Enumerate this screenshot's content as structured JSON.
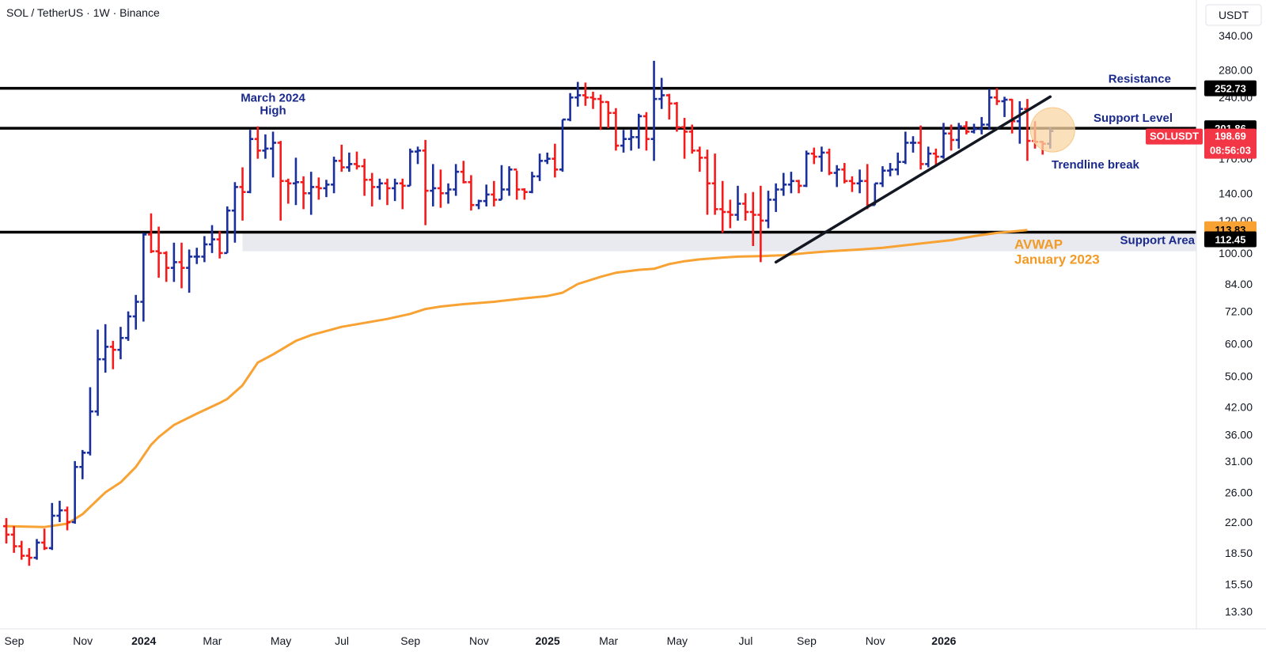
{
  "header": {
    "title": "SOL / TetherUS · 1W · Binance",
    "currency": "USDT"
  },
  "colors": {
    "up": "#1a2f9c",
    "down": "#f51b1b",
    "level_line": "#000000",
    "avwap": "#f7a232",
    "annotation": "#1a2a8c",
    "support_fill": "#e8eaef",
    "badge_dark": "#000000",
    "badge_red": "#f23645",
    "badge_orange": "#f7a232",
    "circle_fill": "#f9d6a6"
  },
  "chart_data": {
    "type": "ohlc",
    "scale": "log",
    "symbol": "SOLUSDT",
    "ylim": [
      13.3,
      340
    ],
    "y_ticks": [
      340,
      280,
      240,
      200,
      170,
      140,
      120,
      100,
      84,
      72,
      60,
      50,
      42,
      36,
      31,
      26,
      22,
      18.5,
      15.5,
      13.3
    ],
    "y_tick_labels": [
      "340.00",
      "280.00",
      "240.00",
      "200.00",
      "170.00",
      "140.00",
      "120.00",
      "100.00",
      "84.00",
      "72.00",
      "60.00",
      "50.00",
      "42.00",
      "36.00",
      "31.00",
      "26.00",
      "22.00",
      "18.50",
      "15.50",
      "13.30"
    ],
    "x_labels": [
      {
        "label": "Sep",
        "week": 0,
        "bold": false
      },
      {
        "label": "Nov",
        "week": 9,
        "bold": false
      },
      {
        "label": "2024",
        "week": 17,
        "bold": true
      },
      {
        "label": "Mar",
        "week": 26,
        "bold": false
      },
      {
        "label": "May",
        "week": 35,
        "bold": false
      },
      {
        "label": "Jul",
        "week": 43,
        "bold": false
      },
      {
        "label": "Sep",
        "week": 52,
        "bold": false
      },
      {
        "label": "Nov",
        "week": 61,
        "bold": false
      },
      {
        "label": "2025",
        "week": 70,
        "bold": true
      },
      {
        "label": "Mar",
        "week": 78,
        "bold": false
      },
      {
        "label": "May",
        "week": 87,
        "bold": false
      },
      {
        "label": "Jul",
        "week": 96,
        "bold": false
      },
      {
        "label": "Sep",
        "week": 104,
        "bold": false
      },
      {
        "label": "Nov",
        "week": 113,
        "bold": false
      },
      {
        "label": "2026",
        "week": 122,
        "bold": true
      }
    ],
    "ohlc": [
      [
        21.5,
        22.5,
        19.5,
        20.5
      ],
      [
        20.5,
        21.5,
        18.5,
        19.2
      ],
      [
        19.2,
        19.8,
        17.8,
        18.2
      ],
      [
        18.2,
        19.0,
        17.2,
        18.0
      ],
      [
        18.0,
        20.0,
        17.8,
        19.6
      ],
      [
        19.6,
        21.2,
        18.8,
        19.0
      ],
      [
        19.0,
        24.5,
        18.8,
        22.8
      ],
      [
        22.8,
        24.8,
        22.0,
        23.5
      ],
      [
        23.5,
        24.0,
        21.0,
        22.0
      ],
      [
        22.0,
        31.0,
        21.8,
        30.0
      ],
      [
        30.0,
        33.0,
        28.0,
        32.5
      ],
      [
        32.5,
        47.0,
        32.0,
        41.0
      ],
      [
        41.0,
        65.0,
        40.0,
        55.0
      ],
      [
        55.0,
        67.0,
        51.0,
        59.0
      ],
      [
        59.0,
        61.0,
        52.0,
        58.0
      ],
      [
        58.0,
        66.0,
        55.0,
        62.0
      ],
      [
        62.0,
        72.0,
        61.0,
        70.0
      ],
      [
        70.0,
        79.0,
        65.0,
        76.0
      ],
      [
        76.0,
        112.0,
        68.0,
        111.0
      ],
      [
        111.0,
        125.0,
        100.0,
        101.0
      ],
      [
        101.0,
        116.0,
        87.0,
        100.0
      ],
      [
        100.0,
        101.0,
        85.0,
        92.0
      ],
      [
        92.0,
        106.0,
        85.0,
        95.0
      ],
      [
        95.0,
        106.0,
        82.0,
        92.0
      ],
      [
        92.0,
        102.0,
        80.0,
        98.0
      ],
      [
        98.0,
        103.0,
        94.0,
        98.0
      ],
      [
        98.0,
        110.0,
        95.0,
        105.0
      ],
      [
        105.0,
        117.0,
        100.0,
        108.0
      ],
      [
        108.0,
        113.0,
        97.0,
        100.0
      ],
      [
        100.0,
        130.0,
        100.0,
        127.0
      ],
      [
        127.0,
        149.0,
        106.0,
        145.0
      ],
      [
        145.0,
        162.0,
        120.0,
        141.0
      ],
      [
        141.0,
        200.0,
        140.0,
        190.0
      ],
      [
        190.0,
        204.0,
        170.0,
        178.0
      ],
      [
        178.0,
        195.0,
        170.0,
        180.0
      ],
      [
        180.0,
        198.0,
        153.0,
        186.0
      ],
      [
        186.0,
        188.0,
        120.0,
        150.0
      ],
      [
        150.0,
        152.0,
        132.0,
        148.0
      ],
      [
        148.0,
        171.0,
        131.0,
        149.0
      ],
      [
        149.0,
        154.0,
        128.0,
        140.0
      ],
      [
        140.0,
        158.0,
        124.0,
        145.0
      ],
      [
        145.0,
        153.0,
        135.0,
        144.0
      ],
      [
        144.0,
        151.0,
        137.0,
        147.0
      ],
      [
        147.0,
        172.0,
        140.0,
        168.0
      ],
      [
        168.0,
        184.0,
        158.0,
        162.0
      ],
      [
        162.0,
        176.0,
        158.0,
        165.0
      ],
      [
        165.0,
        177.0,
        160.0,
        163.0
      ],
      [
        163.0,
        170.0,
        138.0,
        151.0
      ],
      [
        151.0,
        157.0,
        130.0,
        145.0
      ],
      [
        145.0,
        152.0,
        135.0,
        148.0
      ],
      [
        148.0,
        152.0,
        131.0,
        144.0
      ],
      [
        144.0,
        152.0,
        134.0,
        148.0
      ],
      [
        148.0,
        152.0,
        128.0,
        146.0
      ],
      [
        146.0,
        180.0,
        146.0,
        177.0
      ],
      [
        177.0,
        182.0,
        165.0,
        178.0
      ],
      [
        178.0,
        189.0,
        117.0,
        142.0
      ],
      [
        142.0,
        165.0,
        130.0,
        144.0
      ],
      [
        144.0,
        160.0,
        129.0,
        140.0
      ],
      [
        140.0,
        148.0,
        132.0,
        143.0
      ],
      [
        143.0,
        165.0,
        138.0,
        158.0
      ],
      [
        158.0,
        168.0,
        148.0,
        149.0
      ],
      [
        149.0,
        155.0,
        127.0,
        131.0
      ],
      [
        131.0,
        135.0,
        128.0,
        134.0
      ],
      [
        134.0,
        147.0,
        130.0,
        139.0
      ],
      [
        139.0,
        150.0,
        130.0,
        135.0
      ],
      [
        135.0,
        164.0,
        135.0,
        143.0
      ],
      [
        143.0,
        163.0,
        138.0,
        160.0
      ],
      [
        160.0,
        159.0,
        135.0,
        143.0
      ],
      [
        143.0,
        144.0,
        135.0,
        141.0
      ],
      [
        141.0,
        158.0,
        140.0,
        154.0
      ],
      [
        154.0,
        175.0,
        150.0,
        168.0
      ],
      [
        168.0,
        176.0,
        165.0,
        170.0
      ],
      [
        170.0,
        185.0,
        153.0,
        160.0
      ],
      [
        160.0,
        212.0,
        158.0,
        212.0
      ],
      [
        212.0,
        246.0,
        210.0,
        240.0
      ],
      [
        240.0,
        262.0,
        228.0,
        243.0
      ],
      [
        243.0,
        261.0,
        229.0,
        240.0
      ],
      [
        240.0,
        248.0,
        225.0,
        238.0
      ],
      [
        238.0,
        244.0,
        200.0,
        234.0
      ],
      [
        234.0,
        235.0,
        202.0,
        220.0
      ],
      [
        220.0,
        226.0,
        178.0,
        183.0
      ],
      [
        183.0,
        200.0,
        176.0,
        190.0
      ],
      [
        190.0,
        201.0,
        178.0,
        192.0
      ],
      [
        192.0,
        219.0,
        180.0,
        216.0
      ],
      [
        216.0,
        221.0,
        178.0,
        190.0
      ],
      [
        190.0,
        295.0,
        168.0,
        238.0
      ],
      [
        238.0,
        268.0,
        225.0,
        243.0
      ],
      [
        243.0,
        245.0,
        212.0,
        232.0
      ],
      [
        232.0,
        234.0,
        198.0,
        203.0
      ],
      [
        203.0,
        214.0,
        170.0,
        198.0
      ],
      [
        198.0,
        206.0,
        175.0,
        178.0
      ],
      [
        178.0,
        182.0,
        158.0,
        171.0
      ],
      [
        171.0,
        179.0,
        124.0,
        148.0
      ],
      [
        148.0,
        175.0,
        124.0,
        128.0
      ],
      [
        128.0,
        150.0,
        112.0,
        126.0
      ],
      [
        126.0,
        135.0,
        115.0,
        124.0
      ],
      [
        124.0,
        146.0,
        120.0,
        132.0
      ],
      [
        132.0,
        140.0,
        120.0,
        126.0
      ],
      [
        126.0,
        141.0,
        104.0,
        124.0
      ],
      [
        124.0,
        146.0,
        95.0,
        120.0
      ],
      [
        120.0,
        142.0,
        115.0,
        135.0
      ],
      [
        135.0,
        148.0,
        126.0,
        143.0
      ],
      [
        143.0,
        157.0,
        138.0,
        147.0
      ],
      [
        147.0,
        158.0,
        140.0,
        150.0
      ],
      [
        150.0,
        151.0,
        140.0,
        146.0
      ],
      [
        146.0,
        178.0,
        145.0,
        175.0
      ],
      [
        175.0,
        181.0,
        165.0,
        172.0
      ],
      [
        172.0,
        182.0,
        158.0,
        176.0
      ],
      [
        176.0,
        180.0,
        155.0,
        157.0
      ],
      [
        157.0,
        164.0,
        145.0,
        160.0
      ],
      [
        160.0,
        166.0,
        148.0,
        150.0
      ],
      [
        150.0,
        154.0,
        141.0,
        148.0
      ],
      [
        148.0,
        160.0,
        140.0,
        150.0
      ],
      [
        150.0,
        165.0,
        128.0,
        131.0
      ],
      [
        131.0,
        148.0,
        131.0,
        148.0
      ],
      [
        148.0,
        163.0,
        145.0,
        159.0
      ],
      [
        159.0,
        166.0,
        154.0,
        160.0
      ],
      [
        160.0,
        176.0,
        155.0,
        167.0
      ],
      [
        167.0,
        198.0,
        165.0,
        186.0
      ],
      [
        186.0,
        193.0,
        176.0,
        186.0
      ],
      [
        186.0,
        205.0,
        160.0,
        165.0
      ],
      [
        165.0,
        182.0,
        162.0,
        175.0
      ],
      [
        175.0,
        180.0,
        163.0,
        172.0
      ],
      [
        172.0,
        208.0,
        170.0,
        196.0
      ],
      [
        196.0,
        206.0,
        178.0,
        189.0
      ],
      [
        189.0,
        208.0,
        180.0,
        204.0
      ],
      [
        204.0,
        210.0,
        195.0,
        198.0
      ],
      [
        198.0,
        207.0,
        196.0,
        201.0
      ],
      [
        201.0,
        215.0,
        195.0,
        206.0
      ],
      [
        206.0,
        252.0,
        200.0,
        240.0
      ],
      [
        240.0,
        253.0,
        230.0,
        235.0
      ],
      [
        235.0,
        241.0,
        215.0,
        237.0
      ],
      [
        237.0,
        238.0,
        196.0,
        210.0
      ],
      [
        210.0,
        235.0,
        185.0,
        225.0
      ],
      [
        225.0,
        238.0,
        168.0,
        188.0
      ],
      [
        188.0,
        210.0,
        180.0,
        187.0
      ],
      [
        187.0,
        188.0,
        174.0,
        185.0
      ],
      [
        185.0,
        203.0,
        180.0,
        198.69
      ]
    ],
    "avwap": [
      [
        0,
        21.5
      ],
      [
        5,
        21.4
      ],
      [
        8,
        21.8
      ],
      [
        10,
        23.0
      ],
      [
        13,
        26.0
      ],
      [
        15,
        27.5
      ],
      [
        17,
        30.0
      ],
      [
        19,
        34.0
      ],
      [
        20,
        35.5
      ],
      [
        22,
        38.0
      ],
      [
        25,
        40.5
      ],
      [
        28,
        43.0
      ],
      [
        29,
        44.0
      ],
      [
        31,
        47.5
      ],
      [
        33,
        54.0
      ],
      [
        35,
        56.5
      ],
      [
        38,
        61.0
      ],
      [
        40,
        63.0
      ],
      [
        42,
        64.5
      ],
      [
        44,
        66.0
      ],
      [
        47,
        67.5
      ],
      [
        50,
        69.0
      ],
      [
        53,
        71.0
      ],
      [
        55,
        73.0
      ],
      [
        57,
        74.0
      ],
      [
        60,
        75.0
      ],
      [
        64,
        76.0
      ],
      [
        68,
        77.5
      ],
      [
        71,
        78.5
      ],
      [
        73,
        80.0
      ],
      [
        75,
        84.0
      ],
      [
        78,
        87.5
      ],
      [
        80,
        89.5
      ],
      [
        83,
        91.0
      ],
      [
        85,
        91.5
      ],
      [
        87,
        94.0
      ],
      [
        89,
        95.5
      ],
      [
        91,
        96.5
      ],
      [
        94,
        97.5
      ],
      [
        96,
        98.0
      ],
      [
        99,
        98.3
      ],
      [
        102,
        98.8
      ],
      [
        105,
        100.0
      ],
      [
        108,
        101.0
      ],
      [
        112,
        102.0
      ],
      [
        115,
        103.0
      ],
      [
        118,
        104.5
      ],
      [
        121,
        106.0
      ],
      [
        124,
        107.5
      ],
      [
        127,
        110.0
      ],
      [
        130,
        112.0
      ],
      [
        133,
        113.3
      ],
      [
        134,
        113.83
      ]
    ],
    "levels": [
      {
        "name": "Resistance",
        "value": 252.73
      },
      {
        "name": "Support Level",
        "value": 201.86
      },
      {
        "name": "Support Area",
        "value": 112.45
      }
    ],
    "support_area_bottom": 101.0,
    "trendline": [
      [
        101,
        95.0
      ],
      [
        137,
        241.0
      ]
    ],
    "last_price": 198.69,
    "countdown": "08:56:03",
    "avwap_last": 113.83
  },
  "annotations": {
    "march_high_line1": "March 2024",
    "march_high_line2": "High",
    "resistance": "Resistance",
    "support_level": "Support Level",
    "trendline_break": "Trendline break",
    "support_area": "Support Area",
    "avwap_line1": "AVWAP",
    "avwap_line2": "January 2023"
  },
  "badges": {
    "resistance_value": "252.73",
    "support_level_value": "201.86",
    "symbol": "SOLUSDT",
    "price": "198.69",
    "countdown": "08:56:03",
    "avwap_value": "113.83",
    "support_area_value": "112.45"
  }
}
